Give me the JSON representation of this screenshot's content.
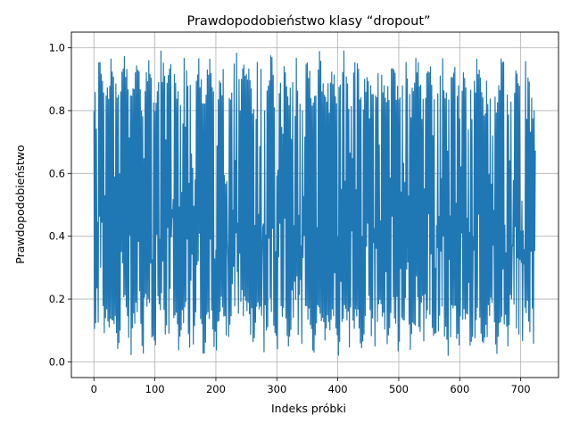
{
  "chart_data": {
    "type": "line",
    "title": "Prawdopodobieństwo klasy “dropout”",
    "xlabel": "Indeks próbki",
    "ylabel": "Prawdopodobieństwo",
    "xlim": [
      -37,
      762
    ],
    "ylim": [
      -0.05,
      1.05
    ],
    "xticks": [
      0,
      100,
      200,
      300,
      400,
      500,
      600,
      700
    ],
    "yticks": [
      0.0,
      0.2,
      0.4,
      0.6,
      0.8,
      1.0
    ],
    "ytick_labels": [
      "0.0",
      "0.2",
      "0.4",
      "0.6",
      "0.8",
      "1.0"
    ],
    "grid": true,
    "series_color": "#1f77b4",
    "n_points": 725,
    "series": [
      {
        "x": [
          0,
          10,
          20,
          30,
          40,
          50,
          60,
          70,
          80,
          90,
          100,
          110,
          120,
          130,
          140,
          150,
          160,
          170,
          180,
          190,
          200,
          210,
          220,
          230,
          240,
          250,
          260,
          270,
          280,
          290,
          300,
          310,
          320,
          330,
          340,
          350,
          360,
          370,
          380,
          390,
          400,
          410,
          420,
          430,
          440,
          450,
          460,
          470,
          480,
          490,
          500,
          510,
          520,
          530,
          540,
          550,
          560,
          570,
          580,
          590,
          600,
          610,
          620,
          630,
          640,
          650,
          660,
          670,
          680,
          690,
          700,
          710,
          720,
          724
        ],
        "values": [
          0.05,
          0.99,
          0.05,
          0.98,
          0.02,
          0.99,
          0.06,
          0.97,
          0.03,
          0.88,
          0.02,
          0.99,
          0.35,
          0.98,
          0.1,
          0.99,
          0.02,
          0.96,
          0.05,
          0.93,
          0.03,
          0.99,
          0.04,
          0.98,
          0.85,
          0.99,
          0.06,
          0.98,
          0.03,
          0.99,
          0.02,
          0.97,
          0.04,
          0.99,
          0.02,
          0.98,
          0.01,
          0.97,
          0.04,
          0.93,
          0.03,
          0.99,
          0.05,
          0.98,
          0.01,
          0.99,
          0.03,
          0.96,
          0.04,
          0.99,
          0.02,
          0.98,
          0.03,
          0.99,
          0.05,
          0.99,
          0.02,
          0.98,
          0.04,
          0.97,
          0.02,
          0.99,
          0.03,
          0.98,
          0.04,
          0.99,
          0.02,
          0.98,
          0.03,
          0.99,
          0.05,
          0.97,
          0.02,
          0.03
        ]
      }
    ]
  }
}
